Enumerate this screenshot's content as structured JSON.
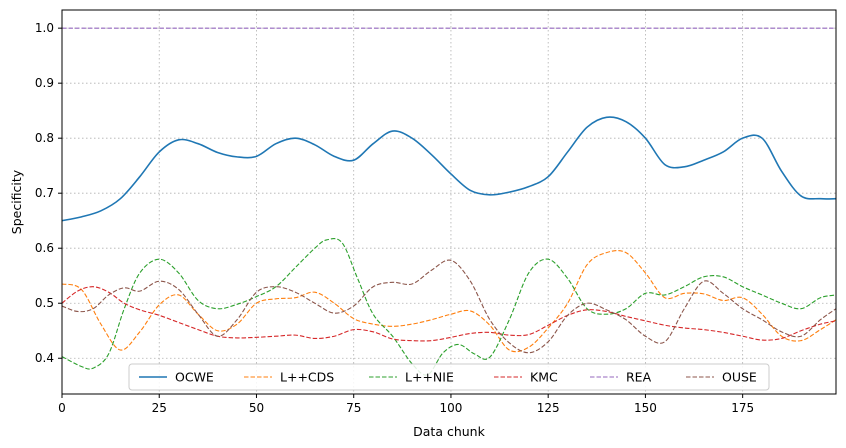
{
  "chart_data": {
    "type": "line",
    "xlabel": "Data chunk",
    "ylabel": "Specificity",
    "xlim": [
      0,
      199
    ],
    "ylim": [
      0.335,
      1.033
    ],
    "xticks": [
      0,
      25,
      50,
      75,
      100,
      125,
      150,
      175
    ],
    "yticks": [
      0.4,
      0.5,
      0.6,
      0.7,
      0.8,
      0.9,
      1.0
    ],
    "ytick_labels": [
      "0.4",
      "0.5",
      "0.6",
      "0.7",
      "0.8",
      "0.9",
      "1.0"
    ],
    "grid": true,
    "legend_position": "bottom-center",
    "series": [
      {
        "name": "OCWE",
        "color": "#1f77b4",
        "dash": "solid",
        "x": [
          0,
          5,
          10,
          15,
          20,
          25,
          30,
          35,
          40,
          45,
          50,
          55,
          60,
          65,
          70,
          75,
          80,
          85,
          90,
          95,
          100,
          105,
          110,
          115,
          120,
          125,
          130,
          135,
          140,
          145,
          150,
          155,
          160,
          165,
          170,
          175,
          180,
          185,
          190,
          195,
          199
        ],
        "y": [
          0.65,
          0.657,
          0.668,
          0.69,
          0.73,
          0.775,
          0.797,
          0.79,
          0.774,
          0.766,
          0.767,
          0.79,
          0.8,
          0.788,
          0.767,
          0.76,
          0.79,
          0.813,
          0.8,
          0.77,
          0.735,
          0.705,
          0.697,
          0.702,
          0.712,
          0.73,
          0.775,
          0.82,
          0.838,
          0.83,
          0.8,
          0.752,
          0.748,
          0.76,
          0.775,
          0.8,
          0.8,
          0.74,
          0.695,
          0.69,
          0.69
        ]
      },
      {
        "name": "L++CDS",
        "color": "#ff7f0e",
        "dash": "dashed",
        "x": [
          0,
          5,
          10,
          15,
          20,
          25,
          30,
          35,
          40,
          45,
          50,
          55,
          60,
          65,
          70,
          75,
          80,
          85,
          90,
          95,
          100,
          105,
          110,
          115,
          120,
          125,
          130,
          135,
          140,
          145,
          150,
          155,
          160,
          165,
          170,
          175,
          180,
          185,
          190,
          195,
          199
        ],
        "y": [
          0.535,
          0.525,
          0.462,
          0.415,
          0.448,
          0.497,
          0.515,
          0.48,
          0.45,
          0.462,
          0.5,
          0.508,
          0.51,
          0.52,
          0.5,
          0.472,
          0.462,
          0.458,
          0.462,
          0.47,
          0.48,
          0.486,
          0.46,
          0.415,
          0.42,
          0.455,
          0.5,
          0.57,
          0.592,
          0.592,
          0.555,
          0.51,
          0.518,
          0.517,
          0.505,
          0.51,
          0.48,
          0.44,
          0.432,
          0.452,
          0.47
        ]
      },
      {
        "name": "L++NIE",
        "color": "#2ca02c",
        "dash": "dashed",
        "x": [
          0,
          5,
          8,
          12,
          16,
          20,
          25,
          30,
          35,
          40,
          45,
          50,
          55,
          60,
          65,
          68,
          72,
          76,
          80,
          85,
          90,
          94,
          98,
          102,
          106,
          110,
          115,
          120,
          125,
          130,
          135,
          140,
          145,
          150,
          155,
          160,
          165,
          170,
          175,
          180,
          185,
          190,
          195,
          199
        ],
        "y": [
          0.403,
          0.385,
          0.382,
          0.408,
          0.49,
          0.555,
          0.58,
          0.555,
          0.505,
          0.49,
          0.498,
          0.512,
          0.53,
          0.565,
          0.6,
          0.615,
          0.61,
          0.545,
          0.48,
          0.44,
          0.39,
          0.37,
          0.41,
          0.425,
          0.408,
          0.402,
          0.47,
          0.555,
          0.58,
          0.545,
          0.49,
          0.48,
          0.49,
          0.518,
          0.515,
          0.53,
          0.548,
          0.548,
          0.53,
          0.515,
          0.5,
          0.49,
          0.51,
          0.515
        ]
      },
      {
        "name": "KMC",
        "color": "#d62728",
        "dash": "dashed",
        "x": [
          0,
          4,
          8,
          12,
          16,
          20,
          25,
          30,
          35,
          40,
          45,
          50,
          55,
          60,
          65,
          70,
          75,
          80,
          85,
          90,
          95,
          100,
          105,
          110,
          115,
          120,
          125,
          130,
          135,
          140,
          145,
          150,
          155,
          160,
          165,
          170,
          175,
          180,
          185,
          190,
          195,
          199
        ],
        "y": [
          0.5,
          0.522,
          0.53,
          0.52,
          0.5,
          0.488,
          0.478,
          0.465,
          0.452,
          0.44,
          0.437,
          0.438,
          0.44,
          0.442,
          0.436,
          0.44,
          0.452,
          0.448,
          0.435,
          0.432,
          0.432,
          0.438,
          0.445,
          0.447,
          0.442,
          0.443,
          0.46,
          0.478,
          0.488,
          0.485,
          0.476,
          0.468,
          0.46,
          0.455,
          0.452,
          0.447,
          0.44,
          0.433,
          0.436,
          0.45,
          0.462,
          0.468
        ]
      },
      {
        "name": "REA",
        "color": "#9467bd",
        "dash": "dashed",
        "x": [
          0,
          199
        ],
        "y": [
          1.0,
          1.0
        ]
      },
      {
        "name": "OUSE",
        "color": "#8c564b",
        "dash": "dashed",
        "x": [
          0,
          4,
          8,
          12,
          16,
          20,
          25,
          30,
          35,
          40,
          45,
          50,
          55,
          60,
          65,
          70,
          75,
          80,
          85,
          90,
          95,
          100,
          105,
          110,
          115,
          120,
          125,
          130,
          135,
          140,
          145,
          150,
          155,
          160,
          165,
          170,
          175,
          180,
          185,
          190,
          195,
          199
        ],
        "y": [
          0.495,
          0.485,
          0.49,
          0.515,
          0.528,
          0.522,
          0.54,
          0.525,
          0.48,
          0.44,
          0.47,
          0.52,
          0.53,
          0.52,
          0.5,
          0.482,
          0.495,
          0.53,
          0.538,
          0.535,
          0.56,
          0.578,
          0.54,
          0.47,
          0.428,
          0.41,
          0.43,
          0.478,
          0.5,
          0.488,
          0.47,
          0.44,
          0.43,
          0.49,
          0.54,
          0.518,
          0.49,
          0.47,
          0.448,
          0.44,
          0.47,
          0.49
        ]
      }
    ]
  }
}
